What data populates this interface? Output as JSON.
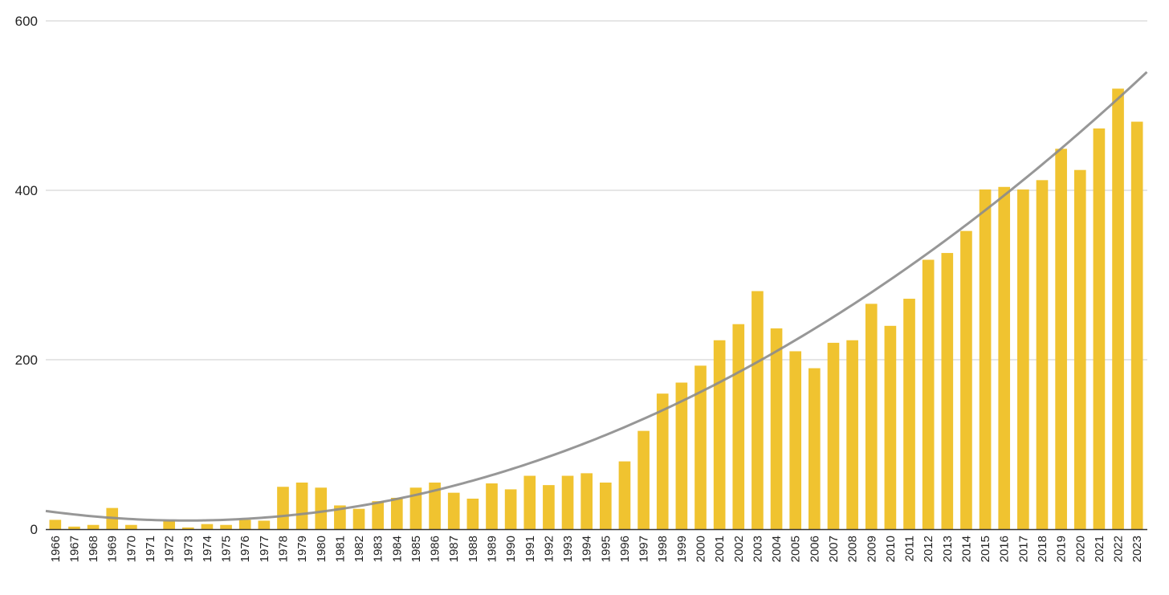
{
  "chart_data": {
    "type": "bar",
    "title": "",
    "xlabel": "",
    "ylabel": "",
    "ylim": [
      0,
      600
    ],
    "yticks": [
      0,
      200,
      400,
      600
    ],
    "grid": true,
    "legend": "none",
    "categories": [
      "1966",
      "1967",
      "1968",
      "1969",
      "1970",
      "1971",
      "1972",
      "1973",
      "1974",
      "1975",
      "1976",
      "1977",
      "1978",
      "1979",
      "1980",
      "1981",
      "1982",
      "1983",
      "1984",
      "1985",
      "1986",
      "1987",
      "1988",
      "1989",
      "1990",
      "1991",
      "1992",
      "1993",
      "1994",
      "1995",
      "1996",
      "1997",
      "1998",
      "1999",
      "2000",
      "2001",
      "2002",
      "2003",
      "2004",
      "2005",
      "2006",
      "2007",
      "2008",
      "2009",
      "2010",
      "2011",
      "2012",
      "2013",
      "2014",
      "2015",
      "2016",
      "2017",
      "2018",
      "2019",
      "2020",
      "2021",
      "2022",
      "2023"
    ],
    "values": [
      11,
      3,
      5,
      25,
      5,
      0,
      10,
      2,
      6,
      5,
      11,
      10,
      50,
      55,
      49,
      28,
      24,
      33,
      37,
      49,
      55,
      43,
      36,
      54,
      47,
      63,
      52,
      63,
      66,
      55,
      80,
      116,
      160,
      173,
      193,
      223,
      242,
      281,
      237,
      210,
      190,
      220,
      223,
      266,
      240,
      272,
      318,
      326,
      352,
      401,
      404,
      401,
      412,
      449,
      424,
      473,
      520,
      481
    ],
    "bar_color": "#f0c330",
    "trendline": {
      "type": "polynomial",
      "degree": 2,
      "color": "#8c8c8c",
      "coefficients": [
        20,
        -2.85,
        0.2066
      ]
    }
  }
}
